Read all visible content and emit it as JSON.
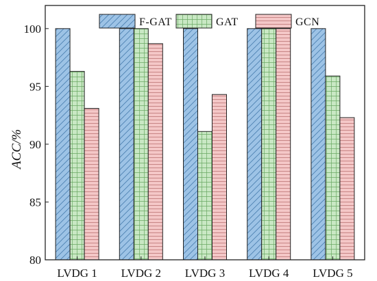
{
  "chart_data": {
    "type": "bar",
    "categories": [
      "LVDG 1",
      "LVDG 2",
      "LVDG 3",
      "LVDG 4",
      "LVDG 5"
    ],
    "series": [
      {
        "name": "F-GAT",
        "values": [
          100,
          100,
          100,
          100,
          100
        ],
        "fill": "#9dc3e6",
        "pattern": "diagonal"
      },
      {
        "name": "GAT",
        "values": [
          96.3,
          100,
          91.1,
          100,
          95.9
        ],
        "fill": "#c9e8c4",
        "pattern": "grid"
      },
      {
        "name": "GCN",
        "values": [
          93.1,
          98.7,
          94.3,
          100,
          92.3
        ],
        "fill": "#f4c7c7",
        "pattern": "horizontal"
      }
    ],
    "ylabel": "ACC/%",
    "xlabel": "",
    "ylim": [
      80,
      102
    ],
    "yticks": [
      80,
      85,
      90,
      95,
      100
    ],
    "grid": false,
    "legend_position": "top"
  }
}
